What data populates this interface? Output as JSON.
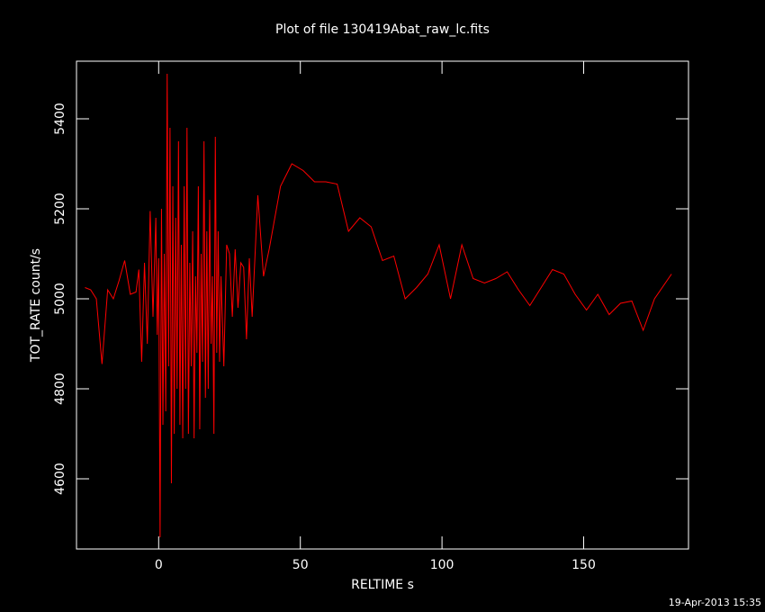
{
  "chart_data": {
    "type": "line",
    "title": "Plot of file 130419Abat_raw_lc.fits",
    "x_label": "RELTIME  s",
    "y_label": "TOT_RATE  count/s",
    "footer": "19-Apr-2013 15:35",
    "xlim": [
      -29,
      187
    ],
    "ylim": [
      4444,
      5528
    ],
    "xticks": [
      0,
      50,
      100,
      150
    ],
    "yticks": [
      4600,
      4800,
      5000,
      5200,
      5400
    ],
    "series": [
      {
        "name": "TOT_RATE",
        "color": "#ff0000",
        "x": [
          -26,
          -24,
          -22,
          -20,
          -18,
          -16,
          -14,
          -12,
          -10,
          -8,
          -7,
          -6,
          -5,
          -4,
          -3,
          -2,
          -1,
          -0.5,
          0,
          0.5,
          1,
          1.5,
          2,
          2.5,
          3,
          3.5,
          4,
          4.5,
          5,
          5.5,
          6,
          6.5,
          7,
          7.5,
          8,
          8.5,
          9,
          9.5,
          10,
          10.5,
          11,
          11.5,
          12,
          12.5,
          13,
          13.5,
          14,
          14.5,
          15,
          15.5,
          16,
          16.5,
          17,
          17.5,
          18,
          18.5,
          19,
          19.5,
          20,
          20.5,
          21,
          21.5,
          22,
          23,
          24,
          25,
          26,
          27,
          28,
          29,
          30,
          31,
          32,
          33,
          35,
          37,
          39,
          43,
          47,
          51,
          55,
          59,
          63,
          67,
          71,
          75,
          79,
          83,
          87,
          91,
          95,
          99,
          103,
          107,
          111,
          115,
          119,
          123,
          127,
          131,
          135,
          139,
          143,
          147,
          151,
          155,
          159,
          163,
          167,
          171,
          175,
          181
        ],
        "values": [
          5025,
          5020,
          5000,
          4855,
          5020,
          5000,
          5040,
          5085,
          5010,
          5015,
          5065,
          4860,
          5080,
          4900,
          5195,
          4960,
          5180,
          4920,
          5090,
          4470,
          5200,
          4720,
          5100,
          4750,
          5500,
          4850,
          5380,
          4590,
          5250,
          4700,
          5180,
          4800,
          5350,
          4720,
          5120,
          4690,
          5250,
          4800,
          5380,
          4700,
          5080,
          4850,
          5150,
          4690,
          5050,
          4880,
          5250,
          4710,
          5100,
          4860,
          5350,
          4780,
          5150,
          4800,
          5220,
          4900,
          5050,
          4700,
          5360,
          4880,
          5150,
          4860,
          5050,
          4850,
          5120,
          5100,
          4960,
          5110,
          4980,
          5080,
          5070,
          4910,
          5090,
          4960,
          5230,
          5050,
          5110,
          5250,
          5300,
          5285,
          5260,
          5260,
          5255,
          5150,
          5180,
          5160,
          5085,
          5095,
          5000,
          5025,
          5055,
          5120,
          5000,
          5120,
          5045,
          5035,
          5045,
          5060,
          5020,
          4985,
          5025,
          5065,
          5055,
          5010,
          4975,
          5010,
          4965,
          4990,
          4995,
          4930,
          5000,
          5055
        ]
      }
    ]
  }
}
